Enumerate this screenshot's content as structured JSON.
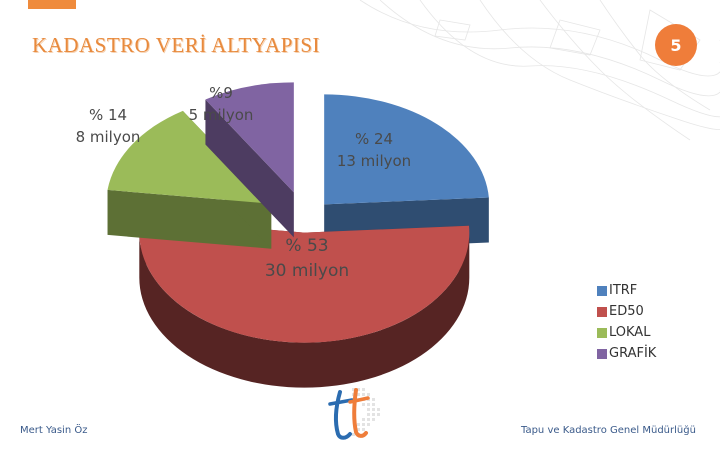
{
  "slide": {
    "title": "KADASTRO VERİ ALTYAPISI",
    "page_number": "5",
    "footer_left": "Mert Yasin Öz",
    "footer_right": "Tapu ve Kadastro Genel Müdürlüğü"
  },
  "chart_data": {
    "type": "pie",
    "style": "3d-exploded",
    "legend_position": "right",
    "slices": [
      {
        "name": "ITRF",
        "percent": 24,
        "value_million": 13,
        "label_line1": "% 24",
        "label_line2": "13 milyon",
        "color": "#4f81bd"
      },
      {
        "name": "ED50",
        "percent": 53,
        "value_million": 30,
        "label_line1": "% 53",
        "label_line2": "30 milyon",
        "color": "#c0504d"
      },
      {
        "name": "LOKAL",
        "percent": 14,
        "value_million": 8,
        "label_line1": "% 14",
        "label_line2": "8 milyon",
        "color": "#9bbb59"
      },
      {
        "name": "GRAFİK",
        "percent": 9,
        "value_million": 5,
        "label_line1": "%9",
        "label_line2": "5 milyon",
        "color": "#8064a2"
      }
    ]
  },
  "legend": {
    "items": [
      {
        "label": "ITRF",
        "color": "#4f81bd"
      },
      {
        "label": "ED50",
        "color": "#c0504d"
      },
      {
        "label": "LOKAL",
        "color": "#9bbb59"
      },
      {
        "label": "GRAFİK",
        "color": "#8064a2"
      }
    ]
  },
  "icons": {
    "logo": "tkgm-logo-icon",
    "background": "contour-map-background"
  },
  "colors": {
    "accent": "#ef8b3c",
    "title": "#e88a3d",
    "badge": "#ef7d3a",
    "footer_text": "#3a5a8a"
  }
}
